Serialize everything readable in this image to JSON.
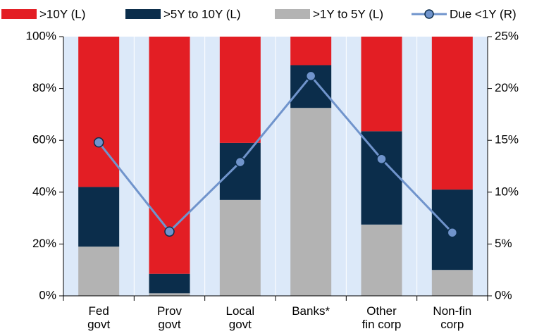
{
  "chart_data": {
    "type": "bar",
    "categories": [
      "Fed\ngovt",
      "Prov\ngovt",
      "Local\ngovt",
      "Banks*",
      "Other\nfin corp",
      "Non-fin\ncorp"
    ],
    "series": [
      {
        "name": ">10Y (L)",
        "color": "#e31e24",
        "values": [
          58,
          91.5,
          41,
          11,
          36.5,
          59
        ]
      },
      {
        "name": ">5Y to 10Y (L)",
        "color": "#0b2d4b",
        "values": [
          23,
          7.5,
          22,
          16.5,
          36,
          31
        ]
      },
      {
        "name": ">1Y to 5Y (L)",
        "color": "#b3b3b3",
        "values": [
          19,
          1,
          37,
          72.5,
          27.5,
          10
        ]
      },
      {
        "name": "Due <1Y (R)",
        "color": "#7094cc",
        "axis": "y2",
        "values": [
          14.8,
          6.2,
          12.9,
          21.2,
          13.2,
          6.1
        ]
      }
    ],
    "ylim": [
      0,
      100
    ],
    "yticks": [
      {
        "value": 0,
        "label": "0%"
      },
      {
        "value": 20,
        "label": "20%"
      },
      {
        "value": 40,
        "label": "40%"
      },
      {
        "value": 60,
        "label": "60%"
      },
      {
        "value": 80,
        "label": "80%"
      },
      {
        "value": 100,
        "label": "100%"
      }
    ],
    "y2lim": [
      0,
      25
    ],
    "y2ticks": [
      {
        "value": 0,
        "label": "0%"
      },
      {
        "value": 5,
        "label": "5%"
      },
      {
        "value": 10,
        "label": "10%"
      },
      {
        "value": 15,
        "label": "15%"
      },
      {
        "value": 20,
        "label": "20%"
      },
      {
        "value": 25,
        "label": "25%"
      }
    ]
  }
}
